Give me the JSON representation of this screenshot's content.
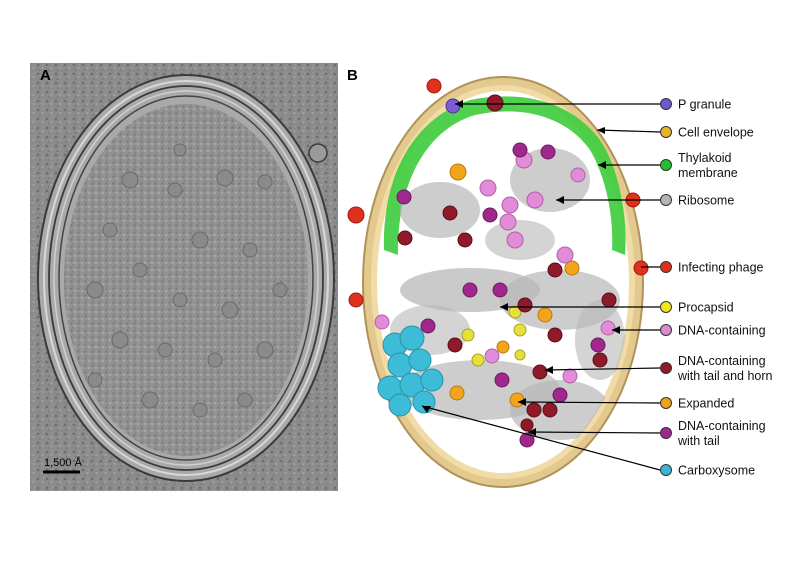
{
  "panel_a": {
    "letter": "A",
    "scale_bar_label": "1,500 Å"
  },
  "panel_b": {
    "letter": "B",
    "legend": [
      {
        "id": "p-granule",
        "lines": [
          "P granule"
        ],
        "color": "#6a5acd"
      },
      {
        "id": "cell-envelope",
        "lines": [
          "Cell envelope"
        ],
        "color": "#e8b32a"
      },
      {
        "id": "thylakoid-membrane",
        "lines": [
          "Thylakoid",
          "membrane"
        ],
        "color": "#22c02a"
      },
      {
        "id": "ribosome",
        "lines": [
          "Ribosome"
        ],
        "color": "#b4b4b4"
      },
      {
        "id": "infecting-phage",
        "lines": [
          "Infecting phage"
        ],
        "color": "#e0301e"
      },
      {
        "id": "procapsid",
        "lines": [
          "Procapsid"
        ],
        "color": "#f2e61e"
      },
      {
        "id": "dna-containing",
        "lines": [
          "DNA-containing"
        ],
        "color": "#d98cc8"
      },
      {
        "id": "dna-containing-tail-horn",
        "lines": [
          "DNA-containing",
          "with tail and horn"
        ],
        "color": "#8e1a2a"
      },
      {
        "id": "expanded",
        "lines": [
          "Expanded"
        ],
        "color": "#f0a21a"
      },
      {
        "id": "dna-containing-tail",
        "lines": [
          "DNA-containing",
          "with tail"
        ],
        "color": "#a0288c"
      },
      {
        "id": "carboxysome",
        "lines": [
          "Carboxysome"
        ],
        "color": "#3cb4d2"
      }
    ]
  }
}
